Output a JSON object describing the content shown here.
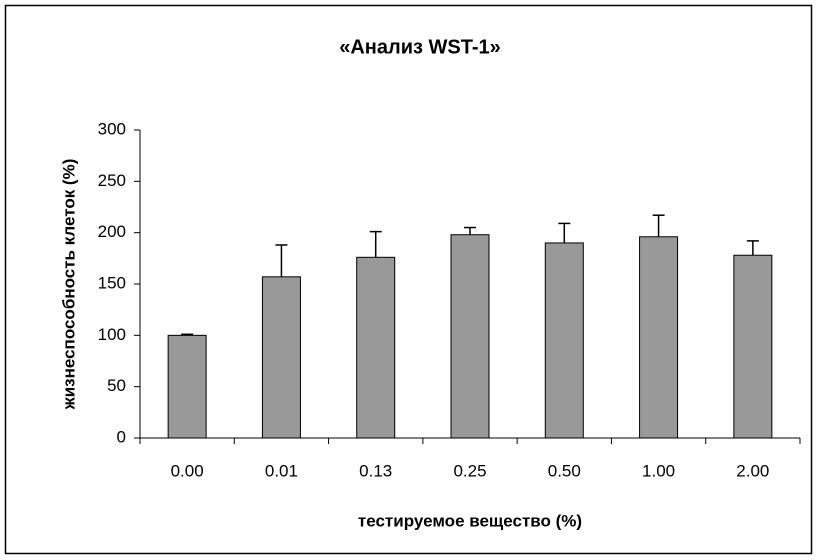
{
  "chart_data": {
    "type": "bar",
    "title": "«Анализ WST-1»",
    "x_label": "тестируемое вещество (%)",
    "y_label": "жизнеспособность клеток (%)",
    "categories": [
      "0.00",
      "0.01",
      "0.13",
      "0.25",
      "0.50",
      "1.00",
      "2.00"
    ],
    "values": [
      100,
      157,
      176,
      198,
      190,
      196,
      178
    ],
    "errors": [
      1,
      31,
      25,
      7,
      19,
      21,
      14
    ],
    "color": "#999999",
    "ylim": [
      0,
      300
    ],
    "yticks": [
      0,
      50,
      100,
      150,
      200,
      250,
      300
    ],
    "grid": false
  }
}
